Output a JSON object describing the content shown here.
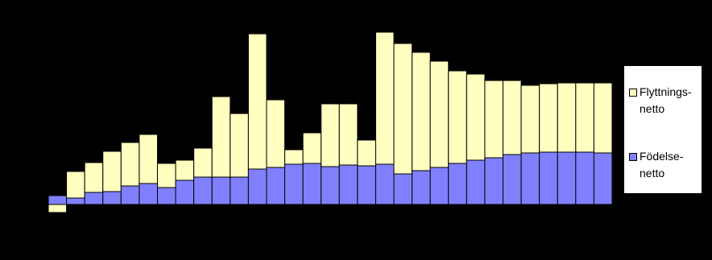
{
  "chart_data": {
    "type": "stacked-bar",
    "series": [
      {
        "name": "Födelse-netto",
        "color": "#8080ff",
        "values": [
          11,
          8,
          15,
          16,
          23,
          26,
          21,
          30,
          34,
          34,
          34,
          44,
          46,
          50,
          51,
          47,
          49,
          48,
          50,
          38,
          42,
          46,
          51,
          55,
          58,
          62,
          64,
          65,
          65,
          65,
          64
        ]
      },
      {
        "name": "Flyttnings-netto",
        "color": "#ffffc0",
        "values": [
          -10,
          33,
          37,
          50,
          54,
          61,
          30,
          25,
          36,
          100,
          79,
          168,
          84,
          18,
          38,
          78,
          76,
          32,
          164,
          162,
          147,
          132,
          115,
          107,
          96,
          92,
          84,
          85,
          86,
          86,
          87
        ]
      }
    ],
    "ylim": [
      -20,
      230
    ]
  }
}
